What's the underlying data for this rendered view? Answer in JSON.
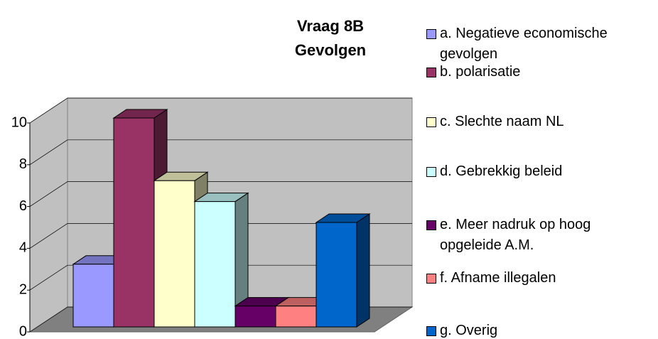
{
  "chart_data": {
    "type": "bar",
    "title": "Vraag 8B Gevolgen",
    "categories": [
      "a. Negatieve economische gevolgen",
      "b. polarisatie",
      "c. Slechte naam NL",
      "d. Gebrekkig beleid",
      "e. Meer nadruk op hoog opgeleide A.M.",
      "f. Afname illegalen",
      "g. Overig"
    ],
    "values": [
      3,
      10,
      7,
      6,
      1,
      1,
      5
    ],
    "colors": [
      "#9999ff",
      "#993366",
      "#ffffcc",
      "#ccffff",
      "#660066",
      "#ff8080",
      "#0066cc"
    ],
    "ylim": [
      0,
      10
    ],
    "yticks": [
      0,
      2,
      4,
      6,
      8,
      10
    ],
    "grid": true,
    "legend": "right"
  }
}
